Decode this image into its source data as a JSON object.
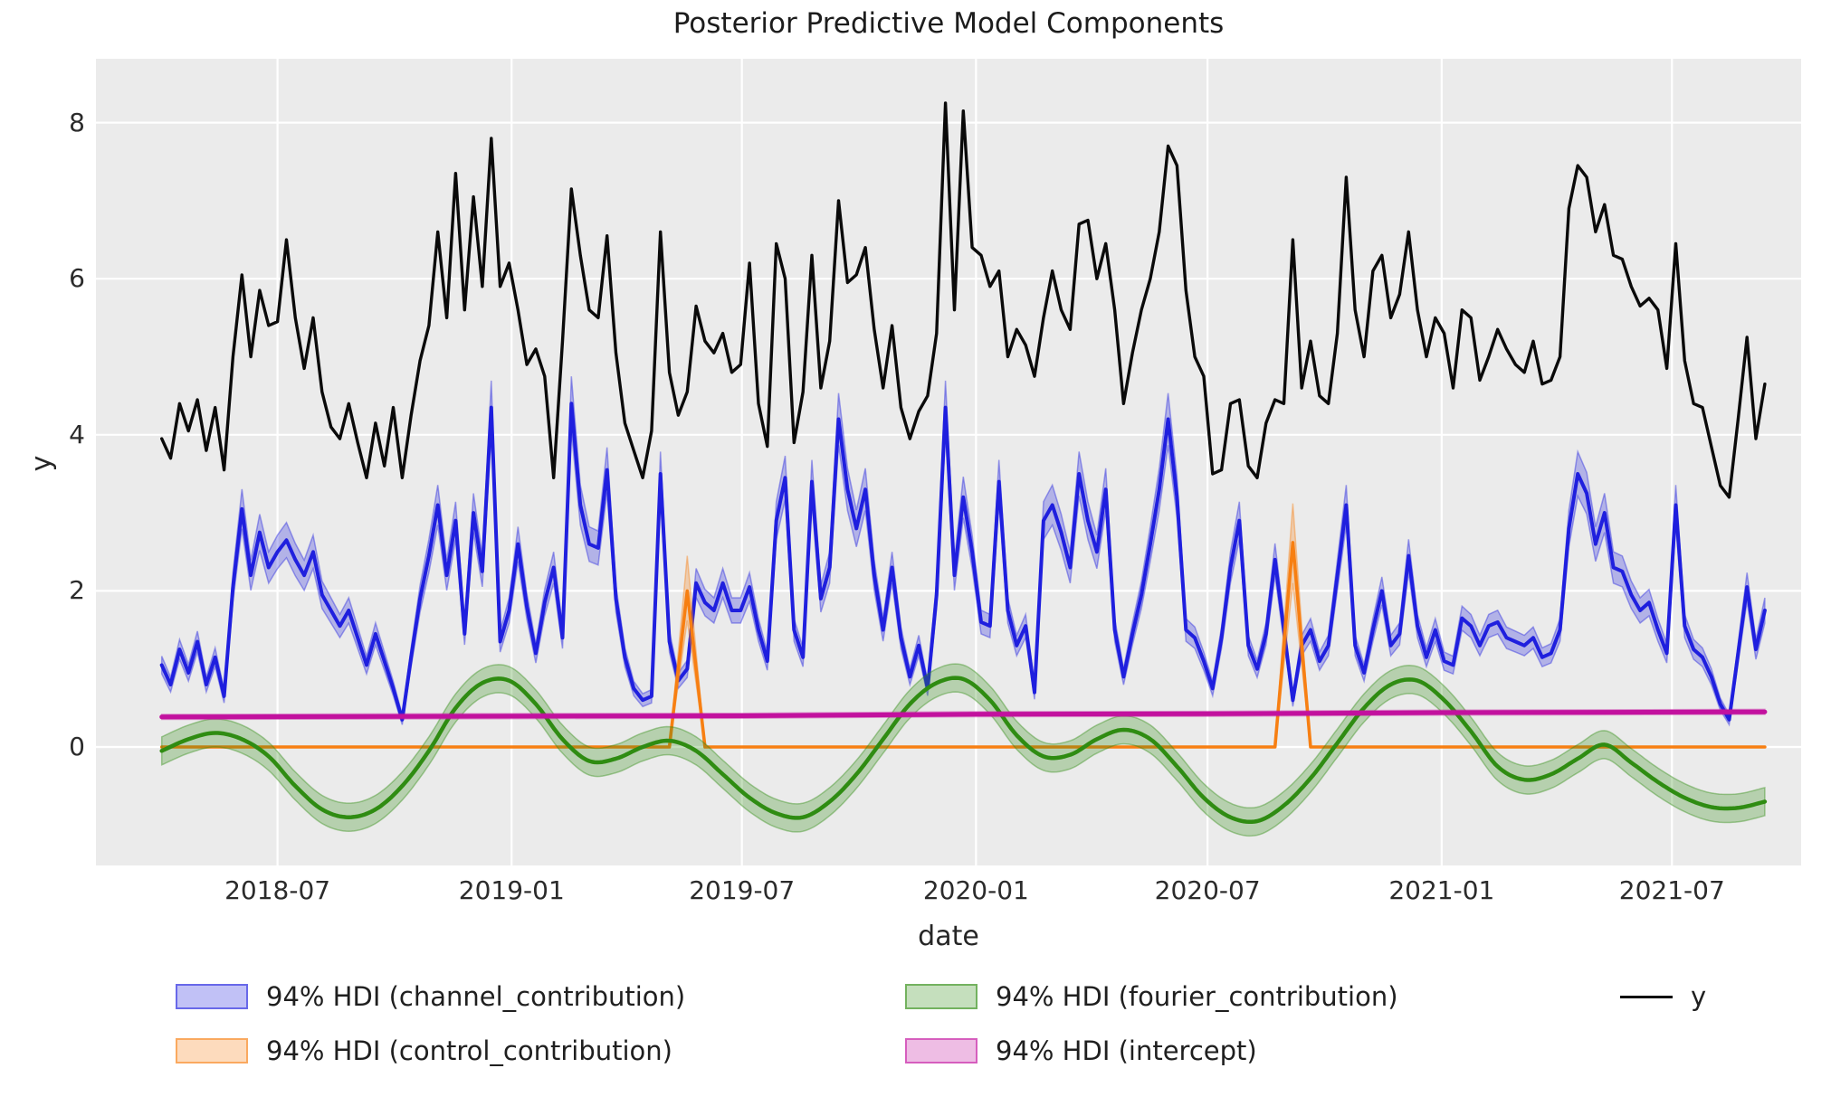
{
  "chart_data": {
    "type": "line",
    "title": "Posterior Predictive Model Components",
    "xlabel": "date",
    "ylabel": "y",
    "ylim": [
      -1.5,
      8.8
    ],
    "grid": true,
    "background": "#ebebeb",
    "legend_position": "bottom",
    "yticks": [
      {
        "v": 0,
        "label": "0"
      },
      {
        "v": 2,
        "label": "2"
      },
      {
        "v": 4,
        "label": "4"
      },
      {
        "v": 6,
        "label": "6"
      },
      {
        "v": 8,
        "label": "8"
      }
    ],
    "xticks": [
      {
        "date": "2018-07-01",
        "label": "2018-07"
      },
      {
        "date": "2019-01-01",
        "label": "2019-01"
      },
      {
        "date": "2019-07-01",
        "label": "2019-07"
      },
      {
        "date": "2020-01-01",
        "label": "2020-01"
      },
      {
        "date": "2020-07-01",
        "label": "2020-07"
      },
      {
        "date": "2021-01-01",
        "label": "2021-01"
      },
      {
        "date": "2021-07-01",
        "label": "2021-07"
      }
    ],
    "x_start": "2018-04-01",
    "x_step_days": 7,
    "n_points": 181,
    "series": [
      {
        "name": "channel_contribution",
        "kind": "hdi-weekly",
        "color": "#1f1fde",
        "hdi_rel": 0.07,
        "hdi_abs": 0.04,
        "values": [
          1.05,
          0.8,
          1.25,
          0.95,
          1.35,
          0.8,
          1.15,
          0.65,
          2.05,
          3.05,
          2.2,
          2.75,
          2.3,
          2.5,
          2.65,
          2.4,
          2.2,
          2.5,
          1.95,
          1.75,
          1.55,
          1.75,
          1.4,
          1.05,
          1.45,
          1.1,
          0.75,
          0.35,
          1.15,
          1.9,
          2.45,
          3.1,
          2.2,
          2.9,
          1.45,
          3.0,
          2.25,
          4.35,
          1.35,
          1.75,
          2.6,
          1.8,
          1.2,
          1.85,
          2.3,
          1.4,
          4.4,
          3.1,
          2.6,
          2.55,
          3.55,
          1.9,
          1.15,
          0.75,
          0.6,
          0.65,
          3.5,
          1.35,
          0.85,
          1.0,
          2.1,
          1.85,
          1.75,
          2.1,
          1.75,
          1.75,
          2.05,
          1.5,
          1.1,
          2.9,
          3.45,
          1.5,
          1.15,
          3.4,
          1.9,
          2.3,
          4.2,
          3.3,
          2.8,
          3.3,
          2.2,
          1.5,
          2.3,
          1.4,
          0.9,
          1.3,
          0.75,
          1.95,
          4.35,
          2.2,
          3.2,
          2.5,
          1.6,
          1.55,
          3.4,
          1.75,
          1.3,
          1.55,
          0.7,
          2.9,
          3.1,
          2.75,
          2.3,
          3.5,
          2.9,
          2.5,
          3.3,
          1.5,
          0.9,
          1.45,
          1.95,
          2.6,
          3.3,
          4.2,
          3.2,
          1.5,
          1.4,
          1.1,
          0.75,
          1.4,
          2.3,
          2.9,
          1.3,
          1.0,
          1.45,
          2.4,
          1.5,
          0.6,
          1.3,
          1.5,
          1.1,
          1.3,
          2.2,
          3.1,
          1.3,
          0.95,
          1.5,
          2.0,
          1.3,
          1.45,
          2.45,
          1.55,
          1.15,
          1.5,
          1.1,
          1.05,
          1.65,
          1.55,
          1.3,
          1.55,
          1.6,
          1.4,
          1.35,
          1.3,
          1.4,
          1.15,
          1.2,
          1.5,
          2.8,
          3.5,
          3.25,
          2.6,
          3.0,
          2.3,
          2.25,
          1.95,
          1.75,
          1.85,
          1.5,
          1.2,
          3.1,
          1.55,
          1.25,
          1.15,
          0.9,
          0.55,
          0.35,
          1.2,
          2.05,
          1.25,
          1.75
        ]
      },
      {
        "name": "control_contribution",
        "kind": "hdi-anchors-linear",
        "color": "#f77f12",
        "anchors": {
          "dates": [
            "2018-04-01",
            "2019-05-05",
            "2019-05-19",
            "2019-06-02",
            "2020-08-23",
            "2020-09-06",
            "2020-09-20",
            "2021-09-12"
          ],
          "mean": [
            0,
            0,
            2.0,
            0,
            0,
            2.62,
            0,
            0
          ],
          "lower": [
            0,
            0,
            1.62,
            0,
            0,
            2.1,
            0,
            0
          ],
          "upper": [
            0,
            0,
            2.45,
            0,
            0,
            3.12,
            0,
            0
          ]
        }
      },
      {
        "name": "fourier_contribution",
        "kind": "hdi-anchors-smooth",
        "color": "#2f8c12",
        "hdi_abs": 0.18,
        "anchors": {
          "dates": [
            "2018-04-01",
            "2018-04-22",
            "2018-05-13",
            "2018-06-03",
            "2018-06-24",
            "2018-07-15",
            "2018-08-05",
            "2018-08-26",
            "2018-09-16",
            "2018-10-07",
            "2018-10-28",
            "2018-11-18",
            "2018-12-09",
            "2018-12-30",
            "2019-01-20",
            "2019-02-10",
            "2019-03-03",
            "2019-03-24",
            "2019-04-14",
            "2019-05-05",
            "2019-05-26",
            "2019-06-16",
            "2019-07-07",
            "2019-07-28",
            "2019-08-18",
            "2019-09-08",
            "2019-09-29",
            "2019-10-20",
            "2019-11-10",
            "2019-12-01",
            "2019-12-22",
            "2020-01-12",
            "2020-02-02",
            "2020-02-23",
            "2020-03-15",
            "2020-04-05",
            "2020-04-26",
            "2020-05-17",
            "2020-06-07",
            "2020-06-28",
            "2020-07-19",
            "2020-08-09",
            "2020-08-30",
            "2020-09-20",
            "2020-10-11",
            "2020-11-01",
            "2020-11-22",
            "2020-12-13",
            "2021-01-03",
            "2021-01-24",
            "2021-02-14",
            "2021-03-07",
            "2021-03-28",
            "2021-04-18",
            "2021-05-09",
            "2021-05-30",
            "2021-06-20",
            "2021-07-11",
            "2021-08-01",
            "2021-08-22",
            "2021-09-12"
          ],
          "mean": [
            -0.05,
            0.1,
            0.18,
            0.1,
            -0.12,
            -0.5,
            -0.8,
            -0.9,
            -0.8,
            -0.5,
            -0.05,
            0.5,
            0.82,
            0.85,
            0.55,
            0.1,
            -0.18,
            -0.15,
            0.0,
            0.08,
            -0.05,
            -0.35,
            -0.65,
            -0.85,
            -0.9,
            -0.7,
            -0.35,
            0.1,
            0.55,
            0.82,
            0.87,
            0.6,
            0.15,
            -0.12,
            -0.1,
            0.1,
            0.22,
            0.1,
            -0.25,
            -0.65,
            -0.9,
            -0.95,
            -0.75,
            -0.4,
            0.05,
            0.5,
            0.8,
            0.85,
            0.6,
            0.2,
            -0.25,
            -0.42,
            -0.35,
            -0.15,
            0.03,
            -0.2,
            -0.45,
            -0.65,
            -0.77,
            -0.78,
            -0.7
          ]
        }
      },
      {
        "name": "intercept",
        "kind": "hdi-anchors-smooth",
        "color": "#c2119e",
        "hdi_abs": 0.032,
        "anchors": {
          "dates": [
            "2018-04-01",
            "2019-01-01",
            "2019-07-01",
            "2020-01-01",
            "2020-07-01",
            "2021-01-01",
            "2021-09-12"
          ],
          "mean": [
            0.385,
            0.395,
            0.4,
            0.42,
            0.425,
            0.44,
            0.45
          ]
        }
      },
      {
        "name": "y",
        "kind": "line-weekly",
        "color": "#0a0a0a",
        "values": [
          3.95,
          3.7,
          4.4,
          4.05,
          4.45,
          3.8,
          4.35,
          3.55,
          5.0,
          6.05,
          5.0,
          5.85,
          5.4,
          5.45,
          6.5,
          5.5,
          4.85,
          5.5,
          4.55,
          4.1,
          3.95,
          4.4,
          3.9,
          3.45,
          4.15,
          3.6,
          4.35,
          3.45,
          4.25,
          4.95,
          5.4,
          6.6,
          5.5,
          7.35,
          5.6,
          7.05,
          5.9,
          7.8,
          5.9,
          6.2,
          5.6,
          4.9,
          5.1,
          4.75,
          3.45,
          5.2,
          7.15,
          6.3,
          5.6,
          5.5,
          6.55,
          5.05,
          4.15,
          3.8,
          3.45,
          4.05,
          6.6,
          4.8,
          4.25,
          4.55,
          5.65,
          5.2,
          5.05,
          5.3,
          4.8,
          4.9,
          6.2,
          4.4,
          3.85,
          6.45,
          6.0,
          3.9,
          4.55,
          6.3,
          4.6,
          5.2,
          7.0,
          5.95,
          6.05,
          6.4,
          5.35,
          4.6,
          5.4,
          4.35,
          3.95,
          4.3,
          4.5,
          5.3,
          8.25,
          5.6,
          8.15,
          6.4,
          6.3,
          5.9,
          6.1,
          5.0,
          5.35,
          5.15,
          4.75,
          5.5,
          6.1,
          5.6,
          5.35,
          6.7,
          6.75,
          6.0,
          6.45,
          5.6,
          4.4,
          5.05,
          5.6,
          6.0,
          6.6,
          7.7,
          7.45,
          5.85,
          5.0,
          4.75,
          3.5,
          3.55,
          4.4,
          4.45,
          3.6,
          3.45,
          4.15,
          4.45,
          4.4,
          6.5,
          4.6,
          5.2,
          4.5,
          4.4,
          5.3,
          7.3,
          5.6,
          5.0,
          6.1,
          6.3,
          5.5,
          5.8,
          6.6,
          5.6,
          5.0,
          5.5,
          5.3,
          4.6,
          5.6,
          5.5,
          4.7,
          5.0,
          5.35,
          5.1,
          4.9,
          4.8,
          5.2,
          4.65,
          4.7,
          5.0,
          6.9,
          7.45,
          7.3,
          6.6,
          6.95,
          6.3,
          6.25,
          5.9,
          5.65,
          5.75,
          5.6,
          4.85,
          6.45,
          4.95,
          4.4,
          4.35,
          3.85,
          3.35,
          3.2,
          4.2,
          5.25,
          3.95,
          4.65
        ]
      }
    ]
  },
  "legend": {
    "items": [
      {
        "kind": "patch",
        "series": "channel_contribution",
        "label": "94% HDI (channel_contribution)"
      },
      {
        "kind": "patch",
        "series": "control_contribution",
        "label": "94% HDI (control_contribution)"
      },
      {
        "kind": "patch",
        "series": "fourier_contribution",
        "label": "94% HDI (fourier_contribution)"
      },
      {
        "kind": "patch",
        "series": "intercept",
        "label": "94% HDI (intercept)"
      },
      {
        "kind": "line",
        "series": "y",
        "label": "y"
      }
    ]
  }
}
